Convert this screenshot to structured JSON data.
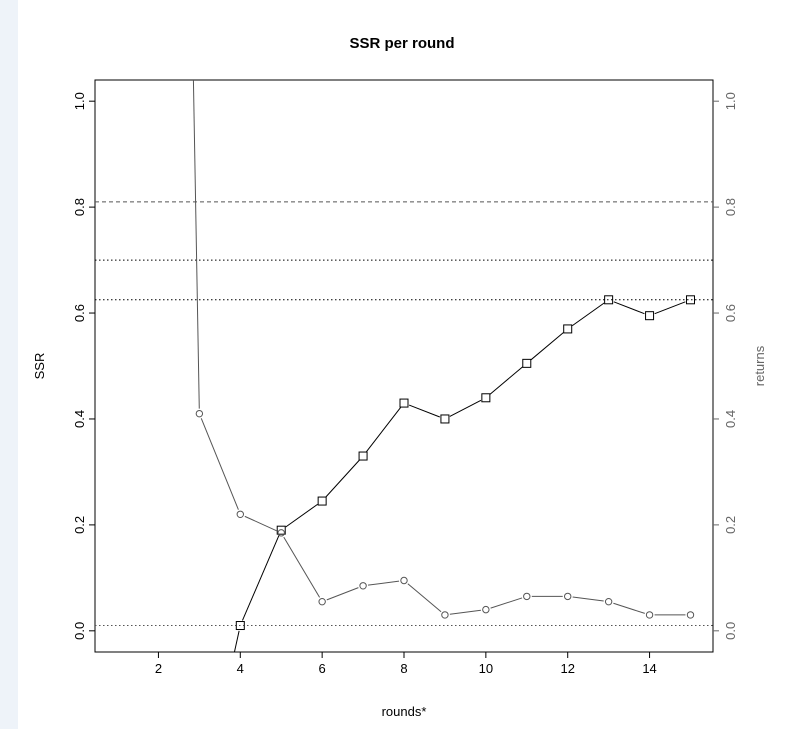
{
  "chart_data": {
    "type": "line",
    "title": "SSR per round",
    "xlabel": "rounds*",
    "ylabel": "SSR",
    "y2label": "returns",
    "xlim": [
      0.45,
      15.55
    ],
    "ylim": [
      -0.04,
      1.04
    ],
    "y2lim": [
      -0.04,
      1.04
    ],
    "xticks": [
      "2",
      "4",
      "6",
      "8",
      "10",
      "12",
      "14"
    ],
    "yticks": [
      "0.0",
      "0.2",
      "0.4",
      "0.6",
      "0.8",
      "1.0"
    ],
    "y2ticks": [
      "0.0",
      "0.2",
      "0.4",
      "0.6",
      "0.8",
      "1.0"
    ],
    "grid": false,
    "series": [
      {
        "axis": "left",
        "marker": "square",
        "color": "#000000",
        "x": [
          3.8,
          4,
          5,
          6,
          7,
          8,
          9,
          10,
          11,
          12,
          13,
          14,
          15
        ],
        "y": [
          -0.06,
          0.01,
          0.19,
          0.245,
          0.33,
          0.43,
          0.4,
          0.44,
          0.505,
          0.57,
          0.625,
          0.595,
          0.625
        ],
        "markers_from_index": 1
      },
      {
        "axis": "right",
        "marker": "circle",
        "color": "#555555",
        "x": [
          2.85,
          3,
          4,
          5,
          6,
          7,
          8,
          9,
          10,
          11,
          12,
          13,
          14,
          15
        ],
        "y": [
          1.06,
          0.41,
          0.22,
          0.185,
          0.055,
          0.085,
          0.095,
          0.03,
          0.04,
          0.065,
          0.065,
          0.055,
          0.03,
          0.03
        ],
        "markers_from_index": 1
      }
    ],
    "hlines": [
      {
        "y": 0.81,
        "style": "dashed",
        "color": "#555555"
      },
      {
        "y": 0.7,
        "style": "dotted",
        "color": "#000000"
      },
      {
        "y": 0.625,
        "style": "dotted",
        "color": "#000000"
      },
      {
        "y": 0.01,
        "style": "dotted",
        "color": "#555555"
      }
    ]
  }
}
